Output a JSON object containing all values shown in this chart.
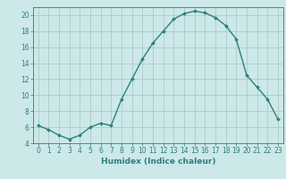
{
  "x": [
    0,
    1,
    2,
    3,
    4,
    5,
    6,
    7,
    8,
    9,
    10,
    11,
    12,
    13,
    14,
    15,
    16,
    17,
    18,
    19,
    20,
    21,
    22,
    23
  ],
  "y": [
    6.2,
    5.7,
    5.0,
    4.5,
    5.0,
    6.0,
    6.5,
    6.2,
    9.5,
    12.0,
    14.5,
    16.5,
    18.0,
    19.5,
    20.2,
    20.5,
    20.3,
    19.7,
    18.7,
    17.0,
    12.5,
    11.0,
    9.5,
    7.0
  ],
  "line_color": "#2d7f7f",
  "bg_color": "#cce8e8",
  "grid_color": "#aacccc",
  "xlabel": "Humidex (Indice chaleur)",
  "ylim": [
    4,
    21
  ],
  "xlim": [
    -0.5,
    23.5
  ],
  "yticks": [
    4,
    6,
    8,
    10,
    12,
    14,
    16,
    18,
    20
  ],
  "xticks": [
    0,
    1,
    2,
    3,
    4,
    5,
    6,
    7,
    8,
    9,
    10,
    11,
    12,
    13,
    14,
    15,
    16,
    17,
    18,
    19,
    20,
    21,
    22,
    23
  ],
  "tick_color": "#2d7f7f",
  "label_fontsize": 6.5,
  "tick_fontsize": 5.5
}
